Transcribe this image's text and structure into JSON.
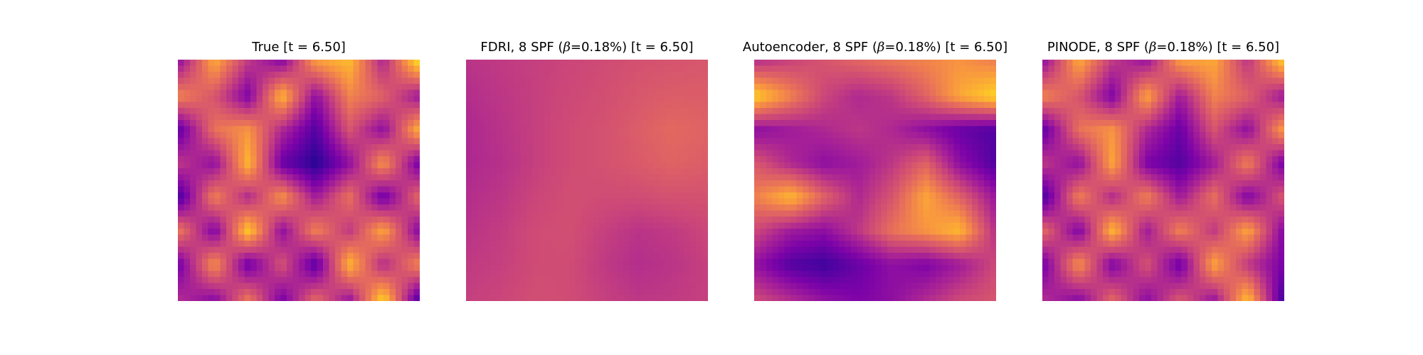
{
  "figure": {
    "panels": [
      {
        "title_pre": "True [t = 6.50]",
        "beta_symbol": "",
        "title_post": ""
      },
      {
        "title_pre": "FDRI, 8 SPF (",
        "beta_symbol": "β",
        "title_post": "=0.18%) [t = 6.50]"
      },
      {
        "title_pre": "Autoencoder, 8 SPF (",
        "beta_symbol": "β",
        "title_post": "=0.18%) [t = 6.50]"
      },
      {
        "title_pre": "PINODE, 8 SPF (",
        "beta_symbol": "β",
        "title_post": "=0.18%) [t = 6.50]"
      }
    ]
  },
  "chart_data": [
    {
      "type": "heatmap",
      "title": "True [t = 6.50]",
      "colormap": "plasma",
      "axes_visible": false,
      "field": [
        [
          0.35,
          0.8,
          0.45,
          0.3,
          0.75,
          0.85,
          0.4,
          0.9
        ],
        [
          0.7,
          0.55,
          0.25,
          0.85,
          0.3,
          0.7,
          0.6,
          0.35
        ],
        [
          0.2,
          0.65,
          0.75,
          0.4,
          0.15,
          0.55,
          0.3,
          0.8
        ],
        [
          0.45,
          0.3,
          0.85,
          0.2,
          0.05,
          0.3,
          0.75,
          0.25
        ],
        [
          0.15,
          0.7,
          0.4,
          0.75,
          0.35,
          0.65,
          0.2,
          0.6
        ],
        [
          0.65,
          0.25,
          0.9,
          0.3,
          0.7,
          0.45,
          0.8,
          0.3
        ],
        [
          0.25,
          0.75,
          0.2,
          0.55,
          0.15,
          0.85,
          0.4,
          0.7
        ],
        [
          0.4,
          0.3,
          0.65,
          0.25,
          0.6,
          0.35,
          0.9,
          0.2
        ]
      ]
    },
    {
      "type": "heatmap",
      "title": "FDRI, 8 SPF (β=0.18%) [t = 6.50]",
      "colormap": "plasma",
      "axes_visible": false,
      "field": [
        [
          0.44,
          0.46,
          0.48,
          0.5,
          0.52,
          0.54,
          0.55,
          0.56
        ],
        [
          0.42,
          0.45,
          0.48,
          0.51,
          0.53,
          0.56,
          0.58,
          0.58
        ],
        [
          0.4,
          0.44,
          0.48,
          0.52,
          0.54,
          0.58,
          0.62,
          0.6
        ],
        [
          0.4,
          0.43,
          0.48,
          0.52,
          0.54,
          0.57,
          0.6,
          0.58
        ],
        [
          0.42,
          0.45,
          0.5,
          0.53,
          0.52,
          0.52,
          0.54,
          0.54
        ],
        [
          0.44,
          0.47,
          0.52,
          0.53,
          0.48,
          0.44,
          0.46,
          0.5
        ],
        [
          0.46,
          0.48,
          0.52,
          0.52,
          0.46,
          0.42,
          0.44,
          0.48
        ],
        [
          0.48,
          0.5,
          0.53,
          0.52,
          0.48,
          0.45,
          0.46,
          0.48
        ]
      ]
    },
    {
      "type": "heatmap",
      "title": "Autoencoder, 8 SPF (β=0.18%) [t = 6.50]",
      "colormap": "plasma",
      "axes_visible": false,
      "field": [
        [
          0.45,
          0.5,
          0.55,
          0.6,
          0.65,
          0.7,
          0.75,
          0.7
        ],
        [
          0.9,
          0.7,
          0.5,
          0.4,
          0.45,
          0.6,
          0.8,
          0.92
        ],
        [
          0.3,
          0.35,
          0.4,
          0.45,
          0.4,
          0.3,
          0.2,
          0.15
        ],
        [
          0.55,
          0.4,
          0.3,
          0.35,
          0.45,
          0.6,
          0.3,
          0.15
        ],
        [
          0.7,
          0.85,
          0.6,
          0.4,
          0.55,
          0.8,
          0.6,
          0.35
        ],
        [
          0.5,
          0.35,
          0.3,
          0.45,
          0.65,
          0.75,
          0.85,
          0.45
        ],
        [
          0.3,
          0.15,
          0.1,
          0.2,
          0.3,
          0.25,
          0.35,
          0.5
        ],
        [
          0.5,
          0.4,
          0.3,
          0.25,
          0.3,
          0.4,
          0.5,
          0.55
        ]
      ]
    },
    {
      "type": "heatmap",
      "title": "PINODE, 8 SPF (β=0.18%) [t = 6.50]",
      "colormap": "plasma",
      "axes_visible": false,
      "field": [
        [
          0.35,
          0.8,
          0.45,
          0.35,
          0.75,
          0.8,
          0.45,
          0.85
        ],
        [
          0.7,
          0.55,
          0.25,
          0.8,
          0.35,
          0.7,
          0.6,
          0.35
        ],
        [
          0.2,
          0.65,
          0.75,
          0.4,
          0.2,
          0.55,
          0.3,
          0.75
        ],
        [
          0.45,
          0.3,
          0.8,
          0.25,
          0.15,
          0.35,
          0.7,
          0.25
        ],
        [
          0.15,
          0.7,
          0.4,
          0.7,
          0.35,
          0.65,
          0.25,
          0.55
        ],
        [
          0.6,
          0.25,
          0.85,
          0.35,
          0.7,
          0.45,
          0.8,
          0.3
        ],
        [
          0.25,
          0.75,
          0.25,
          0.55,
          0.2,
          0.8,
          0.45,
          0.25
        ],
        [
          0.4,
          0.3,
          0.6,
          0.3,
          0.55,
          0.35,
          0.85,
          0.15
        ]
      ]
    }
  ]
}
